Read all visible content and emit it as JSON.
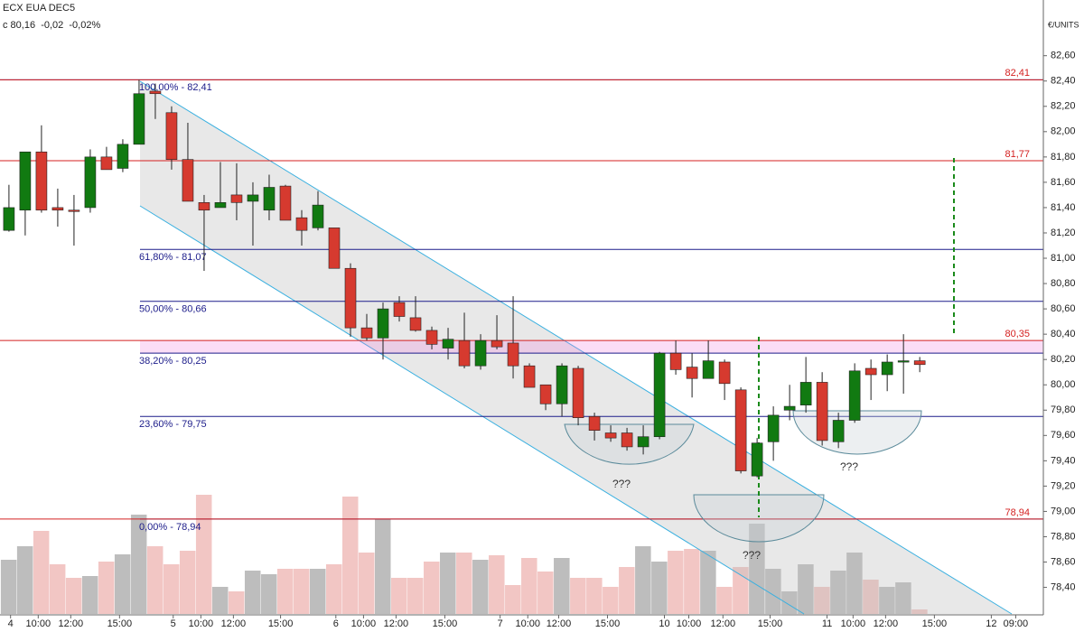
{
  "chart_data": {
    "type": "candlestick",
    "title": "ECX EUA DEC5",
    "subtitle": "c 80,16  -0,02  -0,02%",
    "y_label": "€/UNITS",
    "up_color": "#117a11",
    "down_color": "#d63a2f",
    "volume_up_color": "#bdbdbd",
    "volume_down_color": "#f2c6c4",
    "open": [
      81.22,
      81.38,
      81.84,
      81.4,
      81.38,
      81.4,
      81.8,
      81.71,
      81.9,
      82.32,
      82.15,
      81.78,
      81.44,
      81.4,
      81.5,
      81.45,
      81.38,
      81.57,
      81.32,
      81.24,
      81.24,
      80.92,
      80.45,
      80.37,
      80.65,
      80.53,
      80.43,
      80.29,
      80.35,
      80.15,
      80.35,
      80.33,
      80.15,
      80.0,
      79.85,
      80.13,
      79.75,
      79.62,
      79.62,
      79.51,
      79.59,
      80.25,
      80.14,
      80.05,
      80.18,
      79.96,
      79.28,
      79.55,
      79.8,
      79.84,
      80.02,
      79.55,
      79.72,
      80.13,
      80.08,
      80.18,
      80.19
    ],
    "high": [
      81.58,
      81.84,
      82.05,
      81.55,
      81.5,
      81.86,
      81.88,
      81.94,
      82.41,
      82.38,
      82.2,
      82.07,
      81.5,
      81.76,
      81.75,
      81.6,
      81.66,
      81.58,
      81.38,
      81.53,
      81.24,
      80.96,
      80.56,
      80.65,
      80.7,
      80.7,
      80.46,
      80.45,
      80.57,
      80.4,
      80.55,
      80.7,
      80.17,
      80.0,
      80.17,
      80.15,
      79.78,
      79.68,
      79.66,
      79.68,
      80.26,
      80.35,
      80.25,
      80.35,
      80.2,
      79.98,
      79.58,
      79.83,
      80.0,
      80.22,
      80.1,
      79.78,
      80.17,
      80.2,
      80.24,
      80.4,
      80.22
    ],
    "low": [
      81.21,
      81.18,
      81.36,
      81.25,
      81.1,
      81.36,
      81.7,
      81.68,
      81.9,
      82.1,
      81.7,
      81.45,
      80.9,
      81.4,
      81.3,
      81.1,
      81.3,
      81.3,
      81.1,
      81.22,
      80.92,
      80.38,
      80.35,
      80.2,
      80.5,
      80.42,
      80.28,
      80.2,
      80.13,
      80.12,
      80.28,
      80.05,
      79.98,
      79.8,
      79.75,
      79.68,
      79.56,
      79.55,
      79.48,
      79.45,
      79.57,
      80.08,
      79.9,
      80.05,
      79.88,
      79.3,
      79.27,
      79.4,
      79.72,
      79.78,
      79.52,
      79.5,
      79.7,
      79.88,
      79.95,
      79.93,
      80.1
    ],
    "close": [
      81.4,
      81.84,
      81.38,
      81.38,
      81.37,
      81.8,
      81.7,
      81.9,
      82.3,
      82.3,
      81.78,
      81.45,
      81.38,
      81.44,
      81.44,
      81.5,
      81.56,
      81.3,
      81.22,
      81.42,
      80.92,
      80.45,
      80.37,
      80.6,
      80.54,
      80.43,
      80.32,
      80.36,
      80.15,
      80.35,
      80.3,
      80.15,
      79.98,
      79.85,
      80.15,
      79.74,
      79.64,
      79.58,
      79.51,
      79.59,
      80.25,
      80.12,
      80.05,
      80.19,
      80.01,
      79.32,
      79.54,
      79.76,
      79.83,
      80.02,
      79.56,
      79.72,
      80.11,
      80.08,
      80.18,
      80.19,
      80.16
    ],
    "volume": [
      60,
      75,
      92,
      55,
      40,
      42,
      58,
      66,
      110,
      75,
      55,
      70,
      132,
      30,
      25,
      48,
      44,
      50,
      50,
      50,
      55,
      130,
      68,
      105,
      40,
      40,
      58,
      68,
      68,
      60,
      65,
      32,
      62,
      47,
      62,
      40,
      40,
      30,
      52,
      75,
      58,
      70,
      72,
      70,
      30,
      52,
      100,
      50,
      25,
      55,
      30,
      48,
      68,
      38,
      30,
      35,
      5
    ],
    "volume_ylim": [
      0,
      150
    ],
    "xlim": [
      -0.55,
      63.6
    ],
    "xticks": [
      {
        "value": 0.1,
        "label": "4"
      },
      {
        "value": 1.8,
        "label": "10:00"
      },
      {
        "value": 3.8,
        "label": "12:00"
      },
      {
        "value": 6.8,
        "label": "15:00"
      },
      {
        "value": 10.1,
        "label": "5"
      },
      {
        "value": 11.8,
        "label": "10:00"
      },
      {
        "value": 13.8,
        "label": "12:00"
      },
      {
        "value": 16.7,
        "label": "15:00"
      },
      {
        "value": 20.1,
        "label": "6"
      },
      {
        "value": 21.8,
        "label": "10:00"
      },
      {
        "value": 23.8,
        "label": "12:00"
      },
      {
        "value": 26.8,
        "label": "15:00"
      },
      {
        "value": 30.2,
        "label": "7"
      },
      {
        "value": 31.9,
        "label": "10:00"
      },
      {
        "value": 33.8,
        "label": "12:00"
      },
      {
        "value": 36.8,
        "label": "15:00"
      },
      {
        "value": 40.3,
        "label": "10"
      },
      {
        "value": 41.8,
        "label": "10:00"
      },
      {
        "value": 43.9,
        "label": "12:00"
      },
      {
        "value": 46.8,
        "label": "15:00"
      },
      {
        "value": 50.3,
        "label": "11"
      },
      {
        "value": 51.9,
        "label": "10:00"
      },
      {
        "value": 53.9,
        "label": "12:00"
      },
      {
        "value": 56.9,
        "label": "15:00"
      },
      {
        "value": 60.4,
        "label": "12"
      },
      {
        "value": 61.9,
        "label": "09:00"
      }
    ],
    "ylim": [
      78.19,
      83.04
    ],
    "yticks": [
      {
        "value": 78.4,
        "label": "78,40"
      },
      {
        "value": 78.6,
        "label": "78,60"
      },
      {
        "value": 78.8,
        "label": "78,80"
      },
      {
        "value": 79.0,
        "label": "79,00"
      },
      {
        "value": 79.2,
        "label": "79,20"
      },
      {
        "value": 79.4,
        "label": "79,40"
      },
      {
        "value": 79.6,
        "label": "79,60"
      },
      {
        "value": 79.8,
        "label": "79,80"
      },
      {
        "value": 80.0,
        "label": "80,00"
      },
      {
        "value": 80.2,
        "label": "80,20"
      },
      {
        "value": 80.4,
        "label": "80,40"
      },
      {
        "value": 80.6,
        "label": "80,60"
      },
      {
        "value": 80.8,
        "label": "80,80"
      },
      {
        "value": 81.0,
        "label": "81,00"
      },
      {
        "value": 81.2,
        "label": "81,20"
      },
      {
        "value": 81.4,
        "label": "81,40"
      },
      {
        "value": 81.6,
        "label": "81,60"
      },
      {
        "value": 81.8,
        "label": "81,80"
      },
      {
        "value": 82.0,
        "label": "82,00"
      },
      {
        "value": 82.2,
        "label": "82,20"
      },
      {
        "value": 82.4,
        "label": "82,40"
      },
      {
        "value": 82.6,
        "label": "82,60"
      }
    ],
    "levels": [
      {
        "value": 82.41,
        "label": "82,41"
      },
      {
        "value": 81.77,
        "label": "81,77"
      },
      {
        "value": 80.35,
        "label": "80,35"
      },
      {
        "value": 78.94,
        "label": "78,94"
      }
    ],
    "level_color": "#d42020",
    "fib_levels": [
      {
        "value": 82.41,
        "label": "100,00% - 82,41"
      },
      {
        "value": 81.07,
        "label": "61,80% - 81,07"
      },
      {
        "value": 80.66,
        "label": "50,00% - 80,66"
      },
      {
        "value": 80.25,
        "label": "38,20% - 80,25"
      },
      {
        "value": 79.75,
        "label": "23,60% - 79,75"
      },
      {
        "value": 78.94,
        "label": "0,00% - 78,94"
      }
    ],
    "fib_color": "#1c1c8a",
    "annotations": [
      "???",
      "???",
      "???"
    ]
  }
}
